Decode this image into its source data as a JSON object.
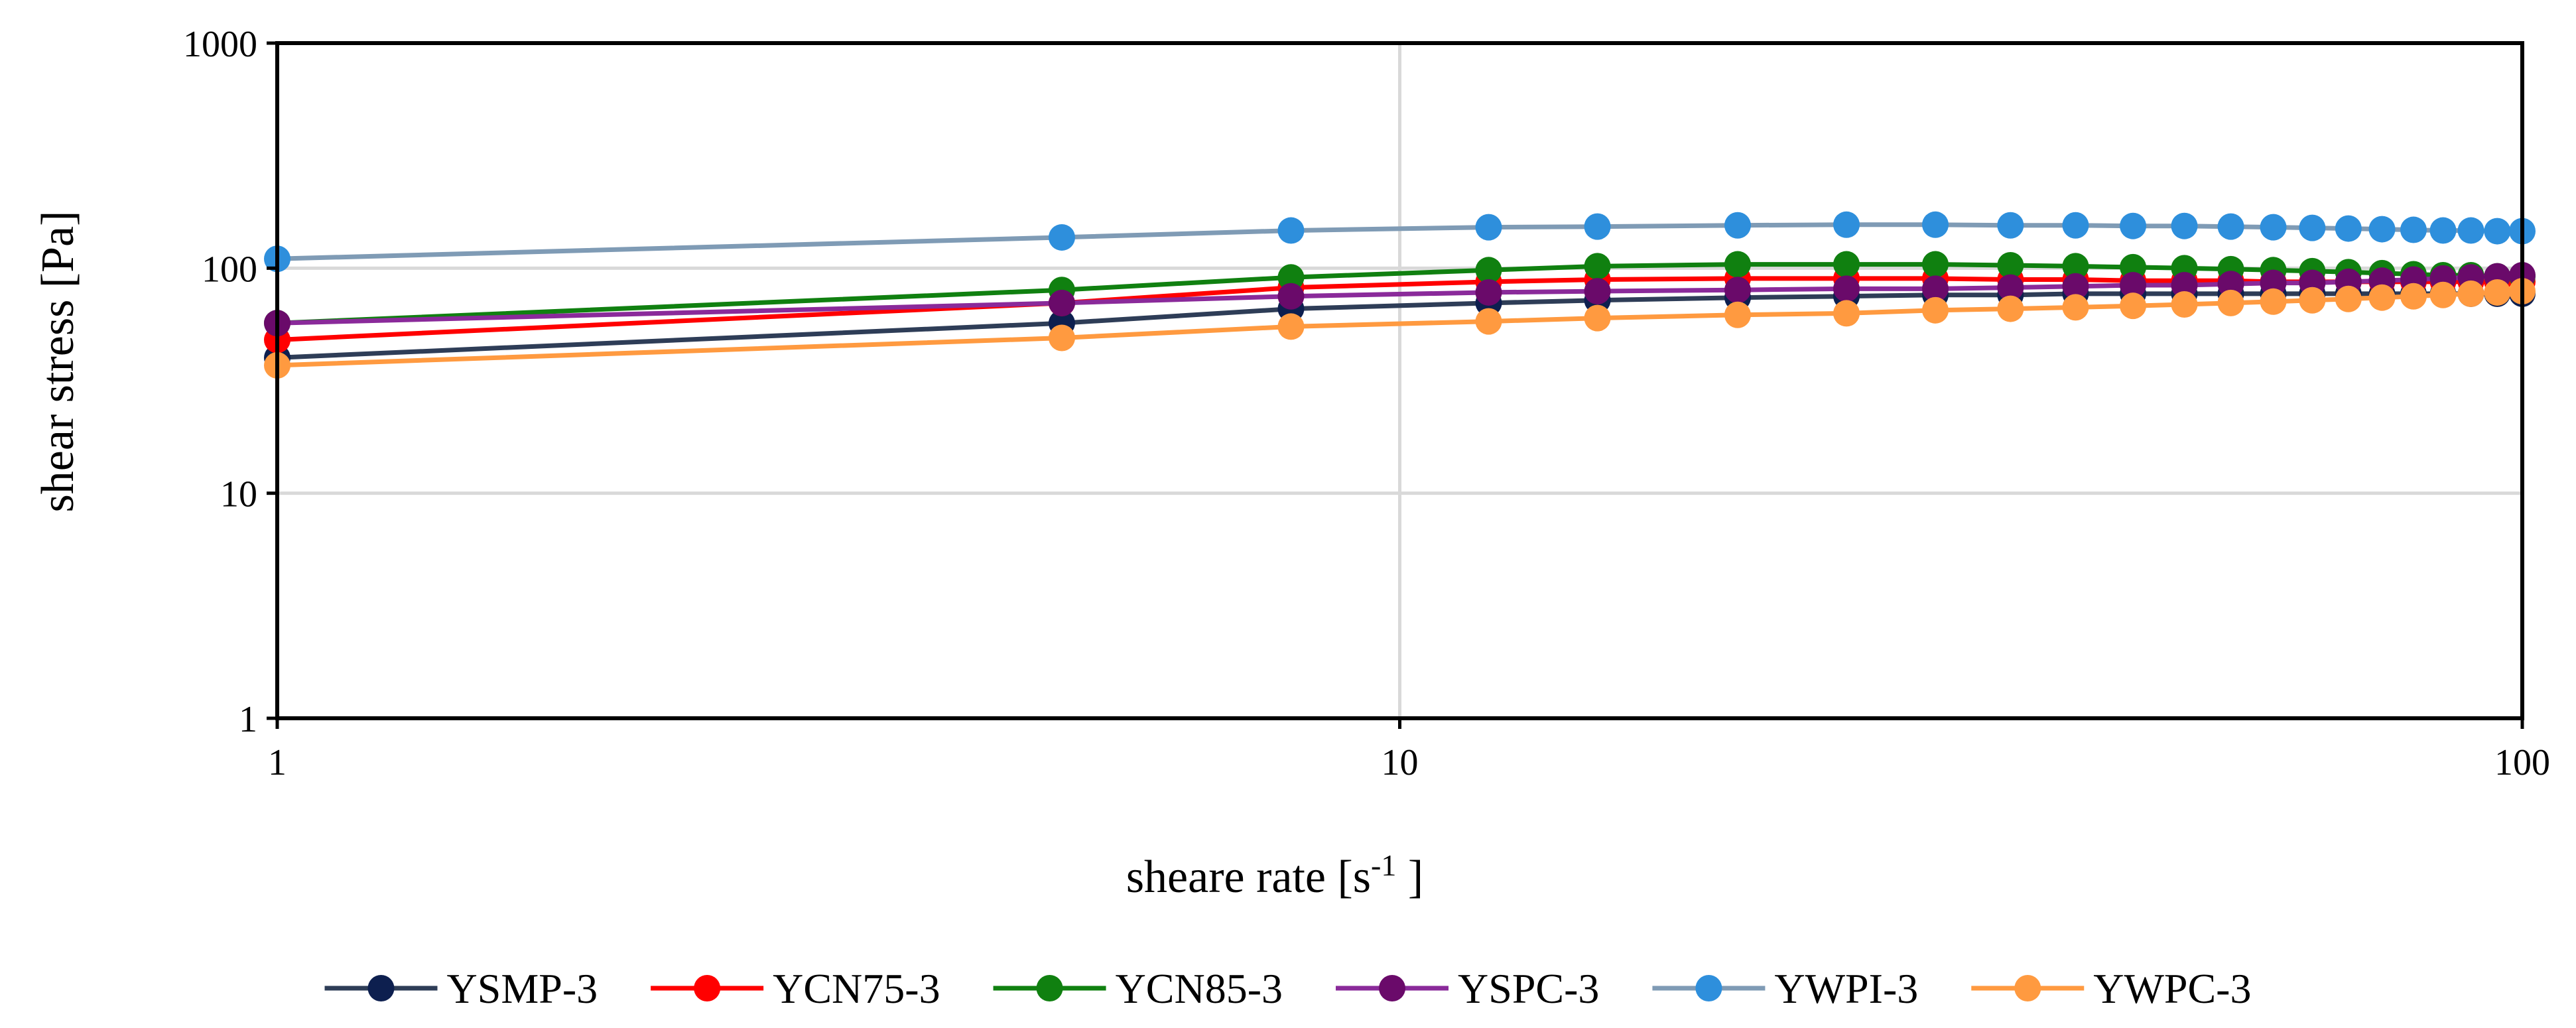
{
  "chart_data": {
    "type": "line",
    "x_scale": "log",
    "y_scale": "log",
    "xlabel": "sheare rate [s",
    "xlabel_sup": "-1",
    "xlabel_end": " ]",
    "ylabel": "shear stress [Pa]",
    "xlim": [
      1,
      100
    ],
    "ylim": [
      1,
      1000
    ],
    "x_ticks": [
      {
        "value": 1,
        "label": "1"
      },
      {
        "value": 10,
        "label": "10"
      },
      {
        "value": 100,
        "label": "100"
      }
    ],
    "y_ticks": [
      {
        "value": 1,
        "label": "1"
      },
      {
        "value": 10,
        "label": "10"
      },
      {
        "value": 100,
        "label": "100"
      },
      {
        "value": 1000,
        "label": "1000"
      }
    ],
    "grid": true,
    "legend_position": "bottom",
    "x": [
      1,
      5,
      8,
      12,
      15,
      20,
      25,
      30,
      35,
      40,
      45,
      50,
      55,
      60,
      65,
      70,
      75,
      80,
      85,
      90,
      95,
      100
    ],
    "series": [
      {
        "name": "YSMP-3",
        "color": "#0d1f4f",
        "line_color": "#2e3d57",
        "values": [
          40,
          57,
          66,
          70,
          72,
          74,
          75,
          76,
          76,
          77,
          77,
          77,
          77,
          77,
          77,
          77,
          77,
          77,
          77,
          77,
          77,
          77
        ]
      },
      {
        "name": "YCN75-3",
        "color": "#ff0000",
        "line_color": "#ff0000",
        "values": [
          48,
          70,
          82,
          87,
          89,
          90,
          90,
          90,
          89,
          89,
          88,
          88,
          88,
          87,
          87,
          87,
          87,
          87,
          87,
          87,
          87,
          87
        ]
      },
      {
        "name": "YCN85-3",
        "color": "#108010",
        "line_color": "#108010",
        "values": [
          57,
          80,
          91,
          98,
          102,
          104,
          104,
          104,
          103,
          102,
          101,
          100,
          99,
          98,
          97,
          96,
          95,
          94,
          93,
          93,
          92,
          92
        ]
      },
      {
        "name": "YSPC-3",
        "color": "#6a0a6a",
        "line_color": "#8a2a9a",
        "values": [
          57,
          70,
          75,
          78,
          79,
          80,
          81,
          81,
          82,
          83,
          84,
          84,
          85,
          86,
          86,
          87,
          88,
          89,
          90,
          91,
          92,
          93
        ]
      },
      {
        "name": "YWPI-3",
        "color": "#2e8fdc",
        "line_color": "#7f9bb5",
        "values": [
          110,
          137,
          147,
          152,
          153,
          155,
          156,
          156,
          155,
          155,
          154,
          154,
          153,
          152,
          151,
          150,
          149,
          148,
          147,
          147,
          146,
          146
        ]
      },
      {
        "name": "YWPC-3",
        "color": "#ff9a40",
        "line_color": "#ff9a40",
        "values": [
          37,
          49,
          55,
          58,
          60,
          62,
          63,
          65,
          66,
          67,
          68,
          69,
          70,
          71,
          72,
          73,
          74,
          75,
          76,
          77,
          78,
          79
        ]
      }
    ]
  }
}
